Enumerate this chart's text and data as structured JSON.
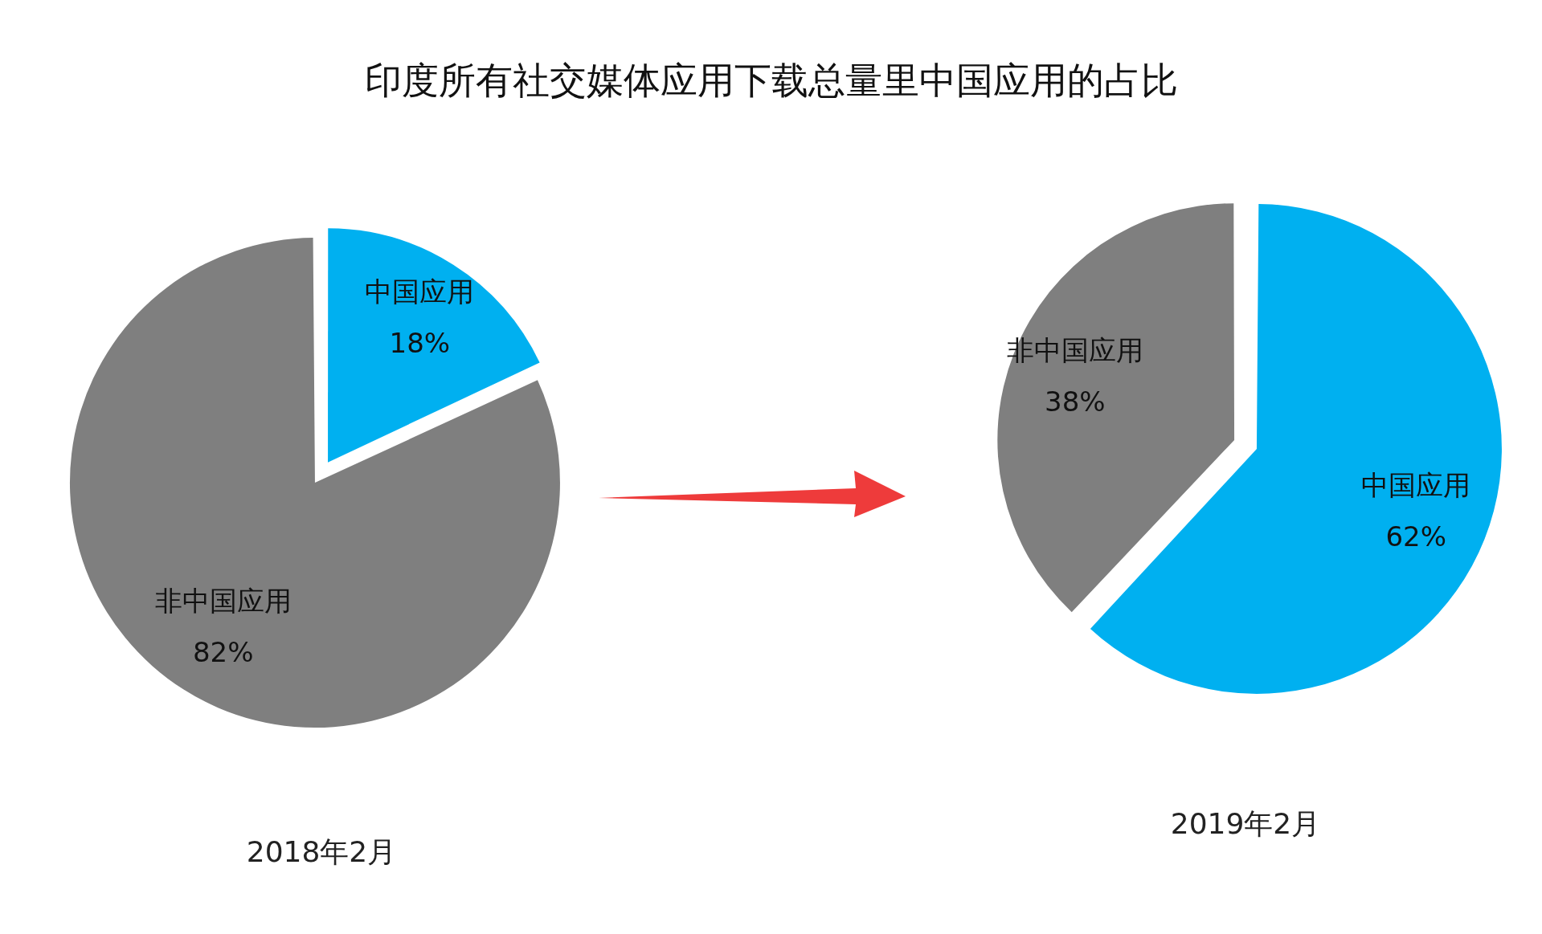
{
  "chart_data": [
    {
      "type": "other",
      "title": "印度所有社交媒体应用下载总量里中国应用的占比"
    },
    {
      "type": "pie",
      "title": "2018年2月",
      "categories": [
        "中国应用",
        "非中国应用"
      ],
      "values": [
        18,
        82
      ],
      "colors": [
        "#00b0f0",
        "#7f7f7f"
      ],
      "value_labels": [
        "18%",
        "82%"
      ],
      "legend": false
    },
    {
      "type": "pie",
      "title": "2019年2月",
      "categories": [
        "中国应用",
        "非中国应用"
      ],
      "values": [
        62,
        38
      ],
      "colors": [
        "#00b0f0",
        "#7f7f7f"
      ],
      "value_labels": [
        "62%",
        "38%"
      ],
      "legend": false
    }
  ]
}
